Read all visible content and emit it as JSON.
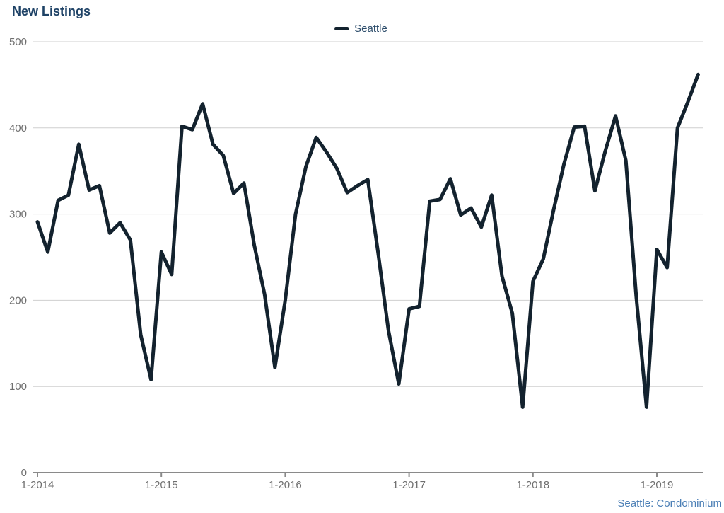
{
  "title": "New Listings",
  "legend": {
    "label": "Seattle",
    "marker_color": "#13222e"
  },
  "footnote": "Seattle: Condominium",
  "colors": {
    "series_line": "#13222e",
    "title_text": "#1e4266",
    "legend_text": "#2d4d6b",
    "axis_label_text": "#6f6f6f",
    "gridline": "#cfcfcf",
    "axis_line": "#8a8a8a",
    "footnote_text": "#4a7eb5",
    "background": "#ffffff"
  },
  "chart_data": {
    "type": "line",
    "title": "New Listings",
    "legend_position": "top-center",
    "grid": true,
    "ylim": [
      0,
      500
    ],
    "y_ticks": [
      0,
      100,
      200,
      300,
      400,
      500
    ],
    "x_tick_labels": [
      "1-2014",
      "1-2015",
      "1-2016",
      "1-2017",
      "1-2018",
      "1-2019"
    ],
    "x_tick_month_indexes": [
      0,
      12,
      24,
      36,
      48,
      60
    ],
    "x": [
      "1-2014",
      "2-2014",
      "3-2014",
      "4-2014",
      "5-2014",
      "6-2014",
      "7-2014",
      "8-2014",
      "9-2014",
      "10-2014",
      "11-2014",
      "12-2014",
      "1-2015",
      "2-2015",
      "3-2015",
      "4-2015",
      "5-2015",
      "6-2015",
      "7-2015",
      "8-2015",
      "9-2015",
      "10-2015",
      "11-2015",
      "12-2015",
      "1-2016",
      "2-2016",
      "3-2016",
      "4-2016",
      "5-2016",
      "6-2016",
      "7-2016",
      "8-2016",
      "9-2016",
      "10-2016",
      "11-2016",
      "12-2016",
      "1-2017",
      "2-2017",
      "3-2017",
      "4-2017",
      "5-2017",
      "6-2017",
      "7-2017",
      "8-2017",
      "9-2017",
      "10-2017",
      "11-2017",
      "12-2017",
      "1-2018",
      "2-2018",
      "3-2018",
      "4-2018",
      "5-2018",
      "6-2018",
      "7-2018",
      "8-2018",
      "9-2018",
      "10-2018",
      "11-2018",
      "12-2018",
      "1-2019",
      "2-2019",
      "3-2019",
      "4-2019",
      "5-2019"
    ],
    "series": [
      {
        "name": "Seattle",
        "color": "#13222e",
        "values": [
          291,
          256,
          316,
          322,
          381,
          328,
          333,
          278,
          290,
          270,
          160,
          108,
          256,
          230,
          402,
          398,
          428,
          381,
          368,
          324,
          336,
          264,
          207,
          122,
          200,
          300,
          355,
          389,
          372,
          353,
          325,
          333,
          340,
          255,
          165,
          103,
          190,
          193,
          315,
          317,
          341,
          299,
          307,
          285,
          322,
          228,
          185,
          76,
          222,
          248,
          305,
          358,
          401,
          402,
          327,
          373,
          414,
          362,
          205,
          76,
          259,
          238,
          400,
          430,
          462
        ]
      }
    ],
    "annotations": [
      "Seattle: Condominium"
    ]
  }
}
